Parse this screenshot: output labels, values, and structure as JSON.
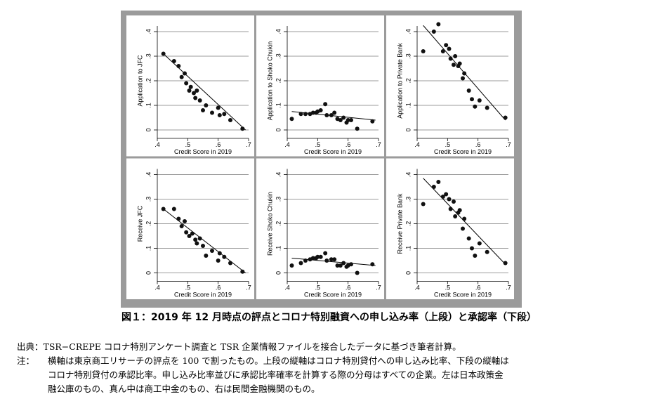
{
  "caption": "図１：2019 年 12 月時点の評点とコロナ特別融資への申し込み率（上段）と承認率（下段）",
  "notes": {
    "source": "出典：TSR−CREPE コロナ特別アンケート調査と TSR 企業情報ファイルを接合したデータに基づき筆者計算。",
    "note_label": "注：",
    "note_line1": "横軸は東京商工リサーチの評点を 100 で割ったもの。上段の縦軸はコロナ特別貸付への申し込み比率、下段の縦軸は",
    "note_line2": "コロナ特別貸付の承認比率。申し込み比率並びに承認比率確率を計算する際の分母はすべての企業。左は日本政策金",
    "note_line3": "融公庫のもの、真ん中は商工中金のもの、右は民間金融機関のもの。"
  },
  "chart_data": [
    {
      "type": "scatter",
      "xlabel": "Credit Score in 2019",
      "ylabel": "Application to JFC",
      "xlim": [
        0.4,
        0.7
      ],
      "ylim": [
        0,
        0.4
      ],
      "x_ticks": [
        ".4",
        ".5",
        ".6",
        ".7"
      ],
      "y_ticks": [
        "0",
        ".1",
        ".2",
        ".3",
        ".4"
      ],
      "grid": true,
      "points": [
        [
          0.42,
          0.31
        ],
        [
          0.455,
          0.28
        ],
        [
          0.47,
          0.26
        ],
        [
          0.48,
          0.215
        ],
        [
          0.49,
          0.23
        ],
        [
          0.495,
          0.19
        ],
        [
          0.505,
          0.16
        ],
        [
          0.51,
          0.175
        ],
        [
          0.52,
          0.15
        ],
        [
          0.525,
          0.13
        ],
        [
          0.53,
          0.16
        ],
        [
          0.54,
          0.12
        ],
        [
          0.55,
          0.08
        ],
        [
          0.56,
          0.1
        ],
        [
          0.58,
          0.07
        ],
        [
          0.6,
          0.09
        ],
        [
          0.605,
          0.06
        ],
        [
          0.62,
          0.065
        ],
        [
          0.64,
          0.04
        ],
        [
          0.68,
          0.005
        ]
      ],
      "fit_line": [
        [
          0.42,
          0.31
        ],
        [
          0.69,
          0.0
        ]
      ]
    },
    {
      "type": "scatter",
      "xlabel": "Credit Score in 2019",
      "ylabel": "Application to Shoko Chukin",
      "xlim": [
        0.4,
        0.7
      ],
      "ylim": [
        0,
        0.4
      ],
      "x_ticks": [
        ".4",
        ".5",
        ".6",
        ".7"
      ],
      "y_ticks": [
        "0",
        ".1",
        ".2",
        ".3",
        ".4"
      ],
      "grid": true,
      "points": [
        [
          0.415,
          0.045
        ],
        [
          0.445,
          0.065
        ],
        [
          0.46,
          0.065
        ],
        [
          0.475,
          0.065
        ],
        [
          0.485,
          0.07
        ],
        [
          0.495,
          0.07
        ],
        [
          0.5,
          0.075
        ],
        [
          0.51,
          0.08
        ],
        [
          0.525,
          0.105
        ],
        [
          0.53,
          0.06
        ],
        [
          0.545,
          0.06
        ],
        [
          0.555,
          0.07
        ],
        [
          0.565,
          0.045
        ],
        [
          0.575,
          0.04
        ],
        [
          0.585,
          0.05
        ],
        [
          0.595,
          0.03
        ],
        [
          0.6,
          0.04
        ],
        [
          0.61,
          0.04
        ],
        [
          0.63,
          0.005
        ],
        [
          0.68,
          0.035
        ]
      ],
      "fit_line": [
        [
          0.415,
          0.075
        ],
        [
          0.69,
          0.04
        ]
      ]
    },
    {
      "type": "scatter",
      "xlabel": "Credit Score in 2019",
      "ylabel": "Application to Private Bank",
      "xlim": [
        0.4,
        0.7
      ],
      "ylim": [
        0,
        0.4
      ],
      "x_ticks": [
        ".4",
        ".5",
        ".6",
        ".7"
      ],
      "y_ticks": [
        "0",
        ".1",
        ".2",
        ".3",
        ".4"
      ],
      "grid": true,
      "points": [
        [
          0.42,
          0.32
        ],
        [
          0.455,
          0.4
        ],
        [
          0.47,
          0.43
        ],
        [
          0.485,
          0.32
        ],
        [
          0.495,
          0.345
        ],
        [
          0.505,
          0.33
        ],
        [
          0.51,
          0.29
        ],
        [
          0.52,
          0.265
        ],
        [
          0.525,
          0.3
        ],
        [
          0.535,
          0.26
        ],
        [
          0.54,
          0.27
        ],
        [
          0.55,
          0.21
        ],
        [
          0.555,
          0.23
        ],
        [
          0.57,
          0.16
        ],
        [
          0.58,
          0.125
        ],
        [
          0.59,
          0.095
        ],
        [
          0.605,
          0.12
        ],
        [
          0.63,
          0.09
        ],
        [
          0.69,
          0.05
        ]
      ],
      "fit_line": [
        [
          0.42,
          0.425
        ],
        [
          0.69,
          0.04
        ]
      ]
    },
    {
      "type": "scatter",
      "xlabel": "Credit Score in 2019",
      "ylabel": "Receive JFC",
      "xlim": [
        0.4,
        0.7
      ],
      "ylim": [
        0,
        0.4
      ],
      "x_ticks": [
        ".4",
        ".5",
        ".6",
        ".7"
      ],
      "y_ticks": [
        "0",
        ".1",
        ".2",
        ".3",
        ".4"
      ],
      "grid": true,
      "points": [
        [
          0.42,
          0.26
        ],
        [
          0.455,
          0.26
        ],
        [
          0.47,
          0.22
        ],
        [
          0.48,
          0.19
        ],
        [
          0.49,
          0.21
        ],
        [
          0.495,
          0.165
        ],
        [
          0.505,
          0.15
        ],
        [
          0.515,
          0.16
        ],
        [
          0.525,
          0.135
        ],
        [
          0.53,
          0.12
        ],
        [
          0.54,
          0.14
        ],
        [
          0.55,
          0.11
        ],
        [
          0.56,
          0.07
        ],
        [
          0.58,
          0.09
        ],
        [
          0.6,
          0.05
        ],
        [
          0.605,
          0.08
        ],
        [
          0.62,
          0.065
        ],
        [
          0.64,
          0.04
        ],
        [
          0.68,
          0.005
        ]
      ],
      "fit_line": [
        [
          0.42,
          0.26
        ],
        [
          0.69,
          0.0
        ]
      ]
    },
    {
      "type": "scatter",
      "xlabel": "Credit Score in 2019",
      "ylabel": "Receive Shoko Chukin",
      "xlim": [
        0.4,
        0.7
      ],
      "ylim": [
        0,
        0.4
      ],
      "x_ticks": [
        ".4",
        ".5",
        ".6",
        ".7"
      ],
      "y_ticks": [
        "0",
        ".1",
        ".2",
        ".3",
        ".4"
      ],
      "grid": true,
      "points": [
        [
          0.415,
          0.03
        ],
        [
          0.445,
          0.04
        ],
        [
          0.46,
          0.05
        ],
        [
          0.475,
          0.055
        ],
        [
          0.485,
          0.06
        ],
        [
          0.495,
          0.06
        ],
        [
          0.5,
          0.065
        ],
        [
          0.51,
          0.065
        ],
        [
          0.525,
          0.08
        ],
        [
          0.53,
          0.05
        ],
        [
          0.545,
          0.055
        ],
        [
          0.555,
          0.055
        ],
        [
          0.565,
          0.03
        ],
        [
          0.575,
          0.03
        ],
        [
          0.585,
          0.04
        ],
        [
          0.595,
          0.025
        ],
        [
          0.6,
          0.03
        ],
        [
          0.61,
          0.035
        ],
        [
          0.63,
          0.0
        ],
        [
          0.68,
          0.035
        ]
      ],
      "fit_line": [
        [
          0.415,
          0.06
        ],
        [
          0.69,
          0.03
        ]
      ]
    },
    {
      "type": "scatter",
      "xlabel": "Credit Score in 2019",
      "ylabel": "Receive Private Bank",
      "xlim": [
        0.4,
        0.7
      ],
      "ylim": [
        0,
        0.4
      ],
      "x_ticks": [
        ".4",
        ".5",
        ".6",
        ".7"
      ],
      "y_ticks": [
        "0",
        ".1",
        ".2",
        ".3",
        ".4"
      ],
      "grid": true,
      "points": [
        [
          0.42,
          0.28
        ],
        [
          0.455,
          0.35
        ],
        [
          0.47,
          0.37
        ],
        [
          0.485,
          0.31
        ],
        [
          0.495,
          0.32
        ],
        [
          0.505,
          0.3
        ],
        [
          0.51,
          0.26
        ],
        [
          0.52,
          0.29
        ],
        [
          0.525,
          0.23
        ],
        [
          0.535,
          0.245
        ],
        [
          0.54,
          0.255
        ],
        [
          0.55,
          0.18
        ],
        [
          0.555,
          0.22
        ],
        [
          0.57,
          0.14
        ],
        [
          0.58,
          0.1
        ],
        [
          0.59,
          0.07
        ],
        [
          0.605,
          0.12
        ],
        [
          0.63,
          0.085
        ],
        [
          0.69,
          0.04
        ]
      ],
      "fit_line": [
        [
          0.42,
          0.385
        ],
        [
          0.69,
          0.035
        ]
      ]
    }
  ]
}
